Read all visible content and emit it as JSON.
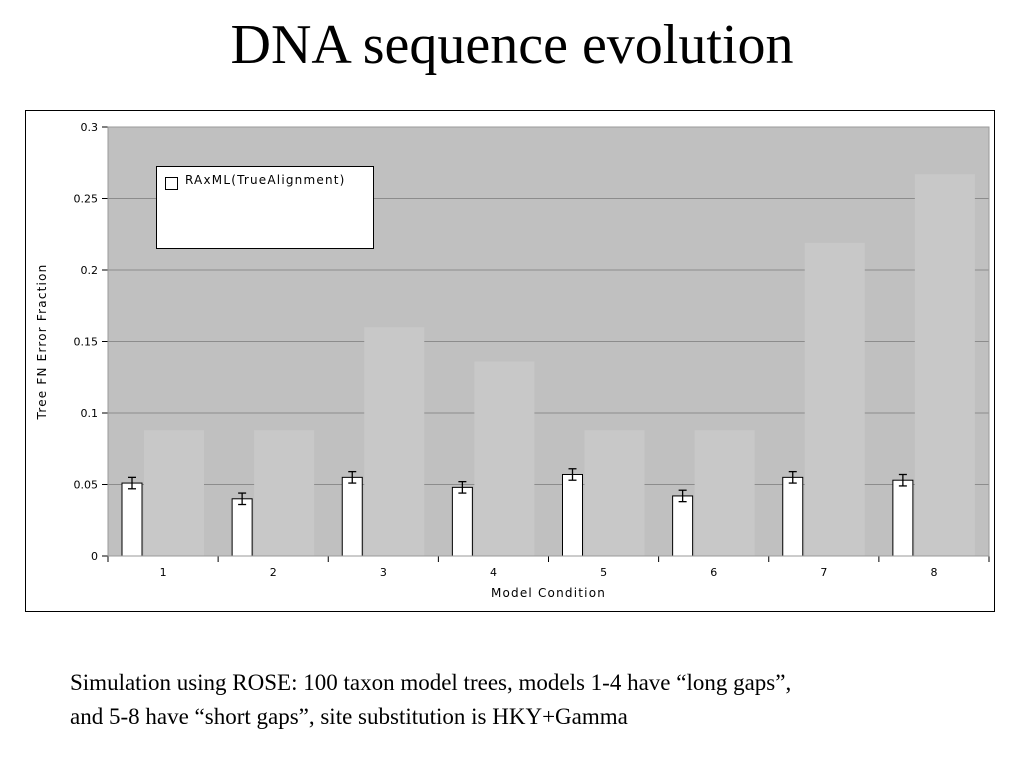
{
  "slide": {
    "title": "DNA sequence evolution",
    "caption_line1": "Simulation using ROSE: 100 taxon model trees, models 1-4 have “long gaps”,",
    "caption_line2": "and 5-8 have “short gaps”, site substitution is HKY+Gamma"
  },
  "chart_data": {
    "type": "bar",
    "xlabel": "Model Condition",
    "ylabel": "Tree FN Error Fraction",
    "categories": [
      "1",
      "2",
      "3",
      "4",
      "5",
      "6",
      "7",
      "8"
    ],
    "ylim": [
      0,
      0.3
    ],
    "yticks": [
      "0",
      "0.05",
      "0.1",
      "0.15",
      "0.2",
      "0.25",
      "0.3"
    ],
    "grid": true,
    "legend_position": "top-left",
    "plot_background": "#c0c0c0",
    "series": [
      {
        "name": "RAxML(TrueAlignment)",
        "color": "#ffffff",
        "values": [
          0.051,
          0.04,
          0.055,
          0.048,
          0.057,
          0.042,
          0.055,
          0.053
        ],
        "error": [
          0.004,
          0.004,
          0.004,
          0.004,
          0.004,
          0.004,
          0.004,
          0.004
        ]
      },
      {
        "color": "#c8c8c8",
        "values": [
          0.088,
          0.088,
          0.16,
          0.136,
          0.088,
          0.088,
          0.219,
          0.267
        ]
      }
    ]
  }
}
